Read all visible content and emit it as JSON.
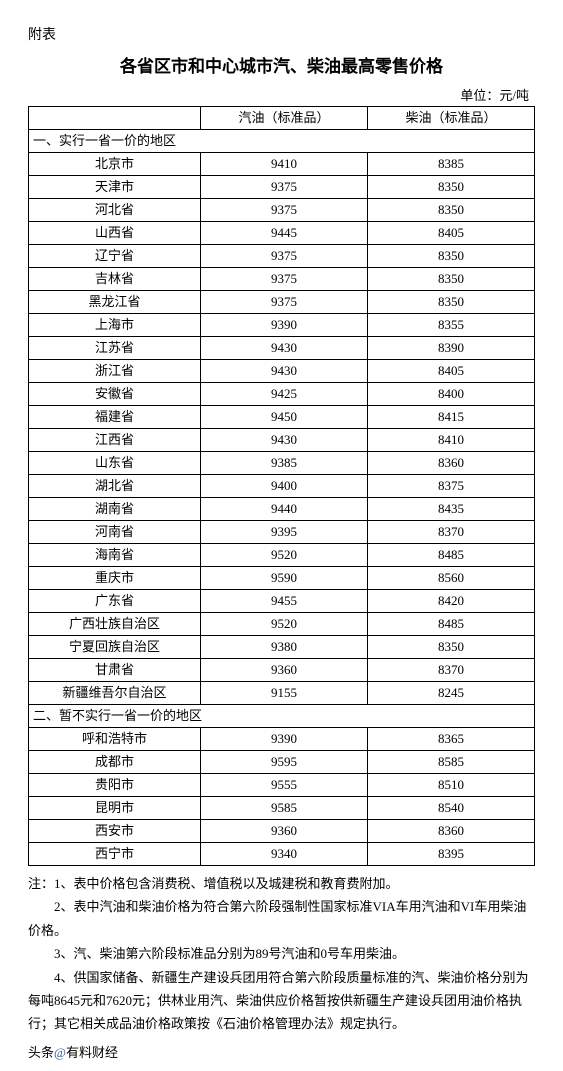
{
  "appendix_label": "附表",
  "title": "各省区市和中心城市汽、柴油最高零售价格",
  "unit": "单位：元/吨",
  "columns": {
    "region": "",
    "gas": "汽油（标准品）",
    "diesel": "柴油（标准品）"
  },
  "section1_label": "一、实行一省一价的地区",
  "section1_rows": [
    {
      "region": "北京市",
      "gas": "9410",
      "diesel": "8385"
    },
    {
      "region": "天津市",
      "gas": "9375",
      "diesel": "8350"
    },
    {
      "region": "河北省",
      "gas": "9375",
      "diesel": "8350"
    },
    {
      "region": "山西省",
      "gas": "9445",
      "diesel": "8405"
    },
    {
      "region": "辽宁省",
      "gas": "9375",
      "diesel": "8350"
    },
    {
      "region": "吉林省",
      "gas": "9375",
      "diesel": "8350"
    },
    {
      "region": "黑龙江省",
      "gas": "9375",
      "diesel": "8350"
    },
    {
      "region": "上海市",
      "gas": "9390",
      "diesel": "8355"
    },
    {
      "region": "江苏省",
      "gas": "9430",
      "diesel": "8390"
    },
    {
      "region": "浙江省",
      "gas": "9430",
      "diesel": "8405"
    },
    {
      "region": "安徽省",
      "gas": "9425",
      "diesel": "8400"
    },
    {
      "region": "福建省",
      "gas": "9450",
      "diesel": "8415"
    },
    {
      "region": "江西省",
      "gas": "9430",
      "diesel": "8410"
    },
    {
      "region": "山东省",
      "gas": "9385",
      "diesel": "8360"
    },
    {
      "region": "湖北省",
      "gas": "9400",
      "diesel": "8375"
    },
    {
      "region": "湖南省",
      "gas": "9440",
      "diesel": "8435"
    },
    {
      "region": "河南省",
      "gas": "9395",
      "diesel": "8370"
    },
    {
      "region": "海南省",
      "gas": "9520",
      "diesel": "8485"
    },
    {
      "region": "重庆市",
      "gas": "9590",
      "diesel": "8560"
    },
    {
      "region": "广东省",
      "gas": "9455",
      "diesel": "8420"
    },
    {
      "region": "广西壮族自治区",
      "gas": "9520",
      "diesel": "8485"
    },
    {
      "region": "宁夏回族自治区",
      "gas": "9380",
      "diesel": "8350"
    },
    {
      "region": "甘肃省",
      "gas": "9360",
      "diesel": "8370"
    },
    {
      "region": "新疆维吾尔自治区",
      "gas": "9155",
      "diesel": "8245"
    }
  ],
  "section2_label": "二、暂不实行一省一价的地区",
  "section2_rows": [
    {
      "region": "呼和浩特市",
      "gas": "9390",
      "diesel": "8365"
    },
    {
      "region": "成都市",
      "gas": "9595",
      "diesel": "8585"
    },
    {
      "region": "贵阳市",
      "gas": "9555",
      "diesel": "8510"
    },
    {
      "region": "昆明市",
      "gas": "9585",
      "diesel": "8540"
    },
    {
      "region": "西安市",
      "gas": "9360",
      "diesel": "8360"
    },
    {
      "region": "西宁市",
      "gas": "9340",
      "diesel": "8395"
    }
  ],
  "notes": [
    "注：1、表中价格包含消费税、增值税以及城建税和教育费附加。",
    "　　2、表中汽油和柴油价格为符合第六阶段强制性国家标准VIA车用汽油和VI车用柴油价格。",
    "　　3、汽、柴油第六阶段标准品分别为89号汽油和0号车用柴油。",
    "　　4、供国家储备、新疆生产建设兵团用符合第六阶段质量标准的汽、柴油价格分别为每吨8645元和7620元；供林业用汽、柴油供应价格暂按供新疆生产建设兵团用油价格执行；其它相关成品油价格政策按《石油价格管理办法》规定执行。"
  ],
  "source_prefix": "头条",
  "source_at": "@",
  "source_name": "有料财经"
}
